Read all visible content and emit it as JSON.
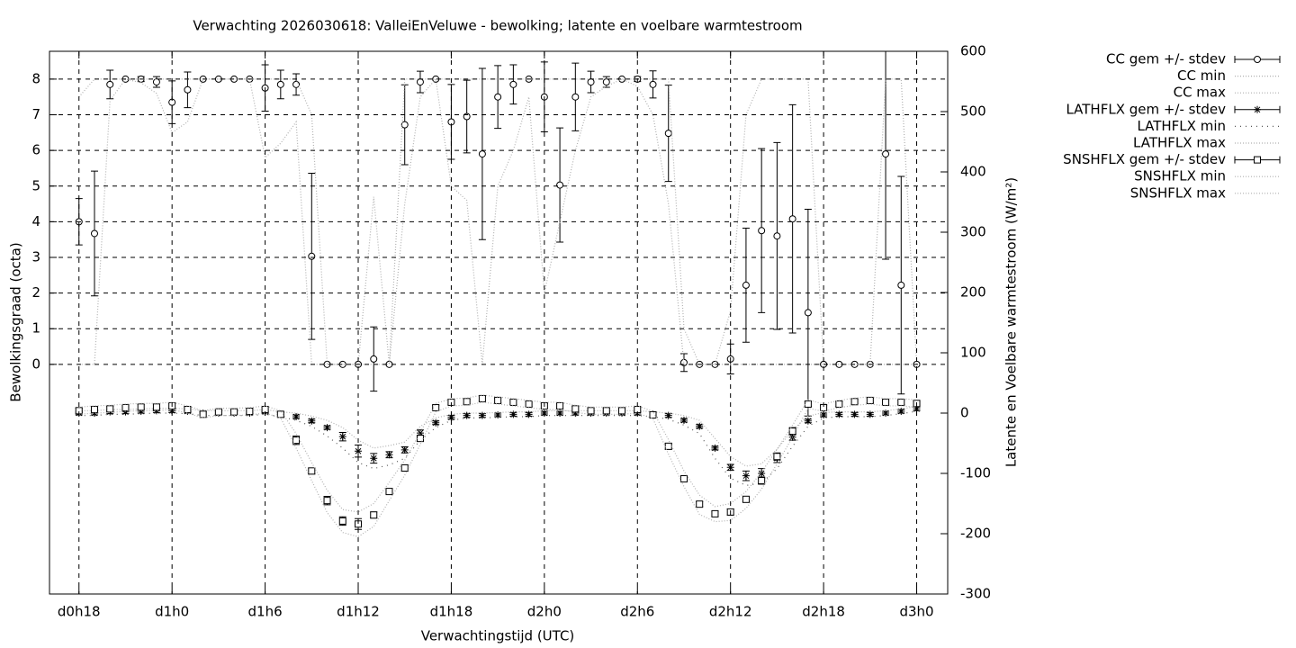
{
  "chart_data": {
    "type": "errorbar",
    "title": "Verwachting 2026030618: ValleiEnVeluwe - bewolking; latente en voelbare warmtestroom",
    "xlabel": "Verwachtingstijd (UTC)",
    "ylabel": "Bewolkingsgraad (octa)",
    "y2label": "Latente en Voelbare warmtestroom (W/m²)",
    "grid": true,
    "legend": "outside-right",
    "x": [
      18,
      19,
      20,
      21,
      22,
      23,
      24,
      25,
      26,
      27,
      28,
      29,
      30,
      31,
      32,
      33,
      34,
      35,
      36,
      37,
      38,
      39,
      40,
      41,
      42,
      43,
      44,
      45,
      46,
      47,
      48,
      49,
      50,
      51,
      52,
      53,
      54,
      55,
      56,
      57,
      58,
      59,
      60,
      61,
      62,
      63,
      64,
      65,
      66,
      67,
      68,
      69,
      70,
      71,
      72
    ],
    "xlim": [
      16.1,
      74
    ],
    "xticks": [
      {
        "value": 18,
        "label": "d0h18"
      },
      {
        "value": 24,
        "label": "d1h0"
      },
      {
        "value": 30,
        "label": "d1h6"
      },
      {
        "value": 36,
        "label": "d1h12"
      },
      {
        "value": 42,
        "label": "d1h18"
      },
      {
        "value": 48,
        "label": "d2h0"
      },
      {
        "value": 54,
        "label": "d2h6"
      },
      {
        "value": 60,
        "label": "d2h12"
      },
      {
        "value": 66,
        "label": "d2h18"
      },
      {
        "value": 72,
        "label": "d3h0"
      }
    ],
    "ylim": [
      -6.44,
      8.78
    ],
    "yticks": [
      0,
      1,
      2,
      3,
      4,
      5,
      6,
      7,
      8
    ],
    "y2lim": [
      -300,
      600
    ],
    "y2ticks": [
      -300,
      -200,
      -100,
      0,
      100,
      200,
      300,
      400,
      500,
      600
    ],
    "series": [
      {
        "name": "CC gem +/- stdev",
        "style": "errorbars",
        "marker": "circle",
        "color": "#000000",
        "values": [
          4.0,
          3.67,
          7.85,
          8,
          8,
          7.92,
          7.35,
          7.7,
          8,
          8,
          8,
          8,
          7.75,
          7.85,
          7.85,
          3.03,
          0,
          0,
          0,
          0.15,
          0,
          6.72,
          7.92,
          8,
          6.8,
          6.95,
          5.9,
          7.5,
          7.85,
          8,
          7.5,
          5.03,
          7.5,
          7.92,
          7.92,
          8,
          8,
          7.85,
          6.48,
          0.05,
          0,
          0,
          0.15,
          2.22,
          3.75,
          3.6,
          4.08,
          1.45,
          0,
          0,
          0,
          0,
          5.9,
          2.22,
          0
        ],
        "errors": [
          0.65,
          1.75,
          0.4,
          0,
          0.07,
          0.15,
          0.6,
          0.5,
          0,
          0,
          0,
          0,
          0.65,
          0.4,
          0.3,
          2.33,
          0,
          0,
          0,
          0.9,
          0,
          1.12,
          0.3,
          0,
          1.05,
          1.02,
          2.4,
          0.88,
          0.55,
          0,
          0.98,
          1.6,
          0.95,
          0.3,
          0.15,
          0,
          0.07,
          0.38,
          1.35,
          0.25,
          0,
          0,
          0.42,
          1.6,
          2.3,
          2.62,
          3.2,
          2.9,
          0,
          0,
          0,
          0,
          2.95,
          3.05,
          0
        ]
      },
      {
        "name": "CC min",
        "style": "dotted",
        "color": "#b0b0b0",
        "values": [
          0,
          0,
          7.4,
          8,
          7.9,
          7.6,
          6.5,
          6.8,
          8,
          8,
          8,
          8,
          5.8,
          6.2,
          6.8,
          0,
          0,
          0,
          0,
          0,
          0,
          4.5,
          7.5,
          8,
          5,
          4.6,
          0,
          5,
          6,
          7.5,
          2,
          4,
          6,
          7.5,
          7.8,
          8,
          7.8,
          7,
          4.5,
          0,
          0,
          0,
          0,
          0,
          0,
          0,
          0,
          0,
          0,
          0,
          0,
          0,
          0,
          0,
          0
        ]
      },
      {
        "name": "CC max",
        "style": "dotted",
        "color": "#b0b0b0",
        "values": [
          7.5,
          8,
          8,
          8,
          8,
          8,
          8,
          8,
          8,
          8,
          8,
          8,
          8,
          8,
          8,
          7,
          0,
          0,
          0,
          4.7,
          0,
          8,
          8,
          8,
          8,
          8,
          8,
          8,
          8,
          8,
          8,
          8,
          8,
          8,
          8,
          8,
          8,
          8,
          8,
          1,
          0,
          0,
          1.5,
          7,
          8,
          8,
          8,
          8,
          0,
          0,
          0,
          0,
          8,
          8,
          0
        ]
      },
      {
        "name": "LATHFLX gem +/- stdev",
        "style": "errorbars",
        "marker": "star",
        "color": "#000000",
        "axis": "y2",
        "values": [
          0,
          0,
          2,
          2,
          3,
          4,
          4,
          3,
          0,
          0,
          0,
          0,
          2,
          -2,
          -6,
          -13,
          -24,
          -39,
          -63,
          -75,
          -69,
          -61,
          -33,
          -16,
          -7,
          -4,
          -4,
          -3,
          -2,
          -2,
          0,
          0,
          0,
          0,
          0,
          0,
          0,
          -2,
          -4,
          -12,
          -22,
          -58,
          -90,
          -104,
          -100,
          -75,
          -40,
          -13,
          -3,
          -2,
          -2,
          -2,
          0,
          3,
          7
        ],
        "errors": [
          3,
          3,
          3,
          3,
          3,
          3,
          3,
          3,
          3,
          3,
          3,
          3,
          3,
          3,
          3,
          3,
          3,
          7,
          10,
          8,
          5,
          5,
          5,
          3,
          3,
          3,
          3,
          3,
          3,
          3,
          3,
          3,
          3,
          3,
          3,
          3,
          3,
          3,
          3,
          3,
          3,
          3,
          5,
          8,
          8,
          7,
          5,
          3,
          3,
          3,
          3,
          3,
          3,
          3,
          3
        ]
      },
      {
        "name": "LATHFLX min",
        "style": "dotted",
        "color": "#555555",
        "axis": "y2",
        "values": [
          -4,
          -4,
          -2,
          -2,
          -1,
          0,
          0,
          -1,
          -4,
          -4,
          -4,
          -4,
          -2,
          -6,
          -12,
          -22,
          -38,
          -58,
          -82,
          -92,
          -86,
          -75,
          -45,
          -24,
          -12,
          -8,
          -8,
          -7,
          -6,
          -6,
          -4,
          -4,
          -4,
          -4,
          -4,
          -4,
          -4,
          -6,
          -10,
          -20,
          -34,
          -75,
          -108,
          -120,
          -116,
          -92,
          -55,
          -22,
          -8,
          -6,
          -6,
          -6,
          -4,
          -1,
          3
        ]
      },
      {
        "name": "LATHFLX max",
        "style": "dotted",
        "color": "#b0b0b0",
        "axis": "y2",
        "values": [
          4,
          4,
          6,
          6,
          7,
          8,
          8,
          7,
          4,
          4,
          4,
          4,
          6,
          2,
          0,
          -5,
          -12,
          -24,
          -45,
          -58,
          -54,
          -48,
          -22,
          -8,
          -2,
          0,
          0,
          1,
          2,
          2,
          4,
          4,
          4,
          4,
          4,
          4,
          4,
          2,
          0,
          -4,
          -12,
          -42,
          -72,
          -88,
          -84,
          -60,
          -28,
          -5,
          1,
          2,
          2,
          2,
          4,
          7,
          11
        ]
      },
      {
        "name": "SNSHFLX gem +/- stdev",
        "style": "errorbars",
        "marker": "square",
        "color": "#000000",
        "axis": "y2",
        "values": [
          4,
          6,
          7,
          9,
          10,
          10,
          12,
          6,
          -2,
          2,
          2,
          3,
          6,
          -2,
          -45,
          -96,
          -145,
          -179,
          -184,
          -169,
          -130,
          -91,
          -42,
          9,
          18,
          19,
          24,
          21,
          18,
          15,
          12,
          12,
          7,
          4,
          4,
          4,
          6,
          -3,
          -55,
          -109,
          -151,
          -167,
          -164,
          -143,
          -112,
          -72,
          -30,
          15,
          9,
          15,
          19,
          21,
          18,
          18,
          16
        ],
        "errors": [
          4,
          4,
          4,
          4,
          4,
          4,
          4,
          4,
          4,
          4,
          4,
          4,
          4,
          4,
          7,
          5,
          7,
          7,
          9,
          5,
          4,
          5,
          5,
          4,
          4,
          4,
          4,
          4,
          4,
          4,
          4,
          4,
          4,
          4,
          4,
          4,
          4,
          4,
          5,
          5,
          4,
          4,
          5,
          4,
          6,
          6,
          6,
          4,
          4,
          4,
          4,
          4,
          4,
          4,
          4
        ]
      },
      {
        "name": "SNSHFLX min",
        "style": "dotted",
        "color": "#b0b0b0",
        "axis": "y2",
        "values": [
          -2,
          0,
          1,
          3,
          4,
          4,
          6,
          0,
          -8,
          -4,
          -4,
          -3,
          0,
          -8,
          -58,
          -112,
          -165,
          -198,
          -205,
          -188,
          -145,
          -103,
          -52,
          2,
          12,
          13,
          18,
          15,
          12,
          9,
          6,
          6,
          1,
          -2,
          -2,
          -2,
          0,
          -9,
          -68,
          -122,
          -168,
          -180,
          -178,
          -158,
          -126,
          -84,
          -40,
          8,
          3,
          9,
          13,
          15,
          12,
          12,
          10
        ]
      },
      {
        "name": "SNSHFLX max",
        "style": "dotted",
        "color": "#b0b0b0",
        "axis": "y2",
        "values": [
          10,
          12,
          13,
          15,
          16,
          16,
          18,
          12,
          4,
          8,
          8,
          9,
          12,
          4,
          -34,
          -82,
          -128,
          -160,
          -164,
          -150,
          -115,
          -78,
          -32,
          16,
          24,
          25,
          30,
          27,
          24,
          21,
          18,
          18,
          13,
          10,
          10,
          10,
          12,
          3,
          -44,
          -96,
          -136,
          -155,
          -150,
          -130,
          -98,
          -60,
          -20,
          22,
          15,
          21,
          25,
          27,
          24,
          24,
          22
        ]
      }
    ]
  }
}
